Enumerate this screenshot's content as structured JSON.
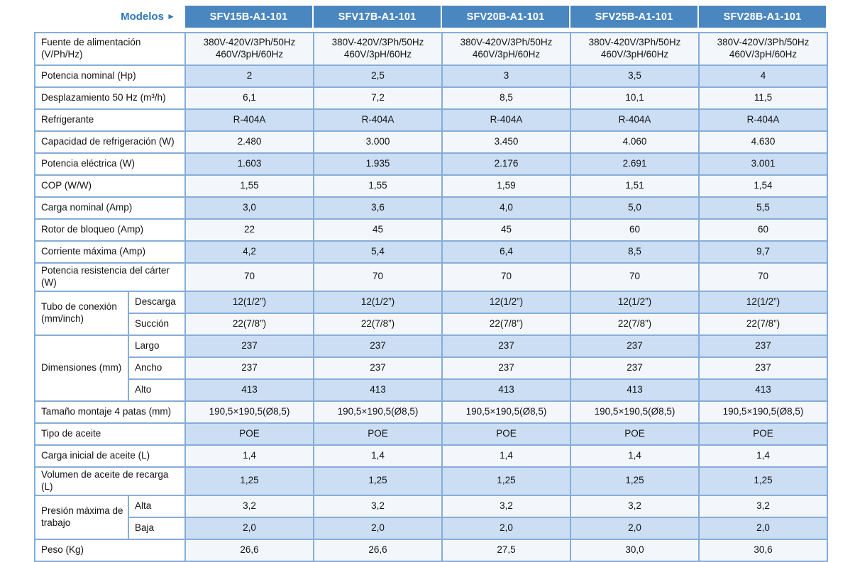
{
  "table": {
    "models_label": "Modelos",
    "models_arrow": "►",
    "models": [
      "SFV15B-A1-101",
      "SFV17B-A1-101",
      "SFV20B-A1-101",
      "SFV25B-A1-101",
      "SFV28B-A1-101"
    ],
    "colors": {
      "header_bg": "#4a87c0",
      "header_text": "#ffffff",
      "accent_text": "#2f79b8",
      "row_shaded": "#cbdef3",
      "row_plain": "#f3f7fc",
      "border_inner": "#86add7",
      "border_outer": "#5b92c5",
      "text": "#121212"
    },
    "rows": [
      {
        "label": "Fuente de alimentación (V/Ph/Hz)",
        "values": [
          "380V-420V/3Ph/50Hz\n460V/3pH/60Hz",
          "380V-420V/3Ph/50Hz\n460V/3pH/60Hz",
          "380V-420V/3Ph/50Hz\n460V/3pH/60Hz",
          "380V-420V/3Ph/50Hz\n460V/3pH/60Hz",
          "380V-420V/3Ph/50Hz\n460V/3pH/60Hz"
        ]
      },
      {
        "label": "Potencia nominal (Hp)",
        "values": [
          "2",
          "2,5",
          "3",
          "3,5",
          "4"
        ]
      },
      {
        "label": "Desplazamiento 50 Hz (m³/h)",
        "values": [
          "6,1",
          "7,2",
          "8,5",
          "10,1",
          "11,5"
        ]
      },
      {
        "label": "Refrigerante",
        "values": [
          "R-404A",
          "R-404A",
          "R-404A",
          "R-404A",
          "R-404A"
        ]
      },
      {
        "label": "Capacidad de refrigeración (W)",
        "values": [
          "2.480",
          "3.000",
          "3.450",
          "4.060",
          "4.630"
        ]
      },
      {
        "label": "Potencia eléctrica (W)",
        "values": [
          "1.603",
          "1.935",
          "2.176",
          "2.691",
          "3.001"
        ]
      },
      {
        "label": "COP (W/W)",
        "values": [
          "1,55",
          "1,55",
          "1,59",
          "1,51",
          "1,54"
        ]
      },
      {
        "label": "Carga nominal (Amp)",
        "values": [
          "3,0",
          "3,6",
          "4,0",
          "5,0",
          "5,5"
        ]
      },
      {
        "label": "Rotor de bloqueo (Amp)",
        "values": [
          "22",
          "45",
          "45",
          "60",
          "60"
        ]
      },
      {
        "label": "Corriente máxima (Amp)",
        "values": [
          "4,2",
          "5,4",
          "6,4",
          "8,5",
          "9,7"
        ]
      },
      {
        "label": "Potencia resistencia del cárter (W)",
        "values": [
          "70",
          "70",
          "70",
          "70",
          "70"
        ]
      },
      {
        "group": "Tubo de conexión (mm/inch)",
        "sub": [
          {
            "label": "Descarga",
            "values": [
              "12(1/2”)",
              "12(1/2”)",
              "12(1/2”)",
              "12(1/2”)",
              "12(1/2”)"
            ]
          },
          {
            "label": "Succión",
            "values": [
              "22(7/8”)",
              "22(7/8”)",
              "22(7/8”)",
              "22(7/8”)",
              "22(7/8”)"
            ]
          }
        ]
      },
      {
        "group": "Dimensiones (mm)",
        "sub": [
          {
            "label": "Largo",
            "values": [
              "237",
              "237",
              "237",
              "237",
              "237"
            ]
          },
          {
            "label": "Ancho",
            "values": [
              "237",
              "237",
              "237",
              "237",
              "237"
            ]
          },
          {
            "label": "Alto",
            "values": [
              "413",
              "413",
              "413",
              "413",
              "413"
            ]
          }
        ]
      },
      {
        "label": "Tamaño montaje 4 patas (mm)",
        "values": [
          "190,5×190,5(Ø8,5)",
          "190,5×190,5(Ø8,5)",
          "190,5×190,5(Ø8,5)",
          "190,5×190,5(Ø8,5)",
          "190,5×190,5(Ø8,5)"
        ]
      },
      {
        "label": "Tipo de aceite",
        "values": [
          "POE",
          "POE",
          "POE",
          "POE",
          "POE"
        ]
      },
      {
        "label": "Carga inicial de aceite (L)",
        "values": [
          "1,4",
          "1,4",
          "1,4",
          "1,4",
          "1,4"
        ]
      },
      {
        "label": "Volumen de aceite de recarga (L)",
        "values": [
          "1,25",
          "1,25",
          "1,25",
          "1,25",
          "1,25"
        ]
      },
      {
        "group": "Presión máxima de trabajo",
        "sub": [
          {
            "label": "Alta",
            "values": [
              "3,2",
              "3,2",
              "3,2",
              "3,2",
              "3,2"
            ]
          },
          {
            "label": "Baja",
            "values": [
              "2,0",
              "2,0",
              "2,0",
              "2,0",
              "2,0"
            ]
          }
        ]
      },
      {
        "label": "Peso (Kg)",
        "values": [
          "26,6",
          "26,6",
          "27,5",
          "30,0",
          "30,6"
        ]
      }
    ]
  }
}
